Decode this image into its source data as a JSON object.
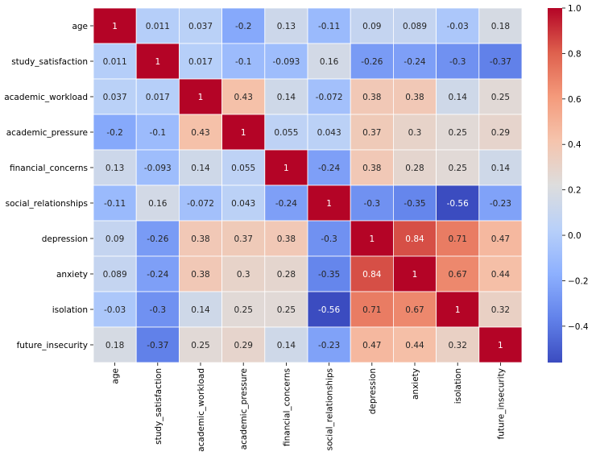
{
  "chart_data": {
    "type": "heatmap",
    "title": "",
    "xlabel": "",
    "ylabel": "",
    "colormap": "coolwarm",
    "row_labels": [
      "age",
      "study_satisfaction",
      "academic_workload ",
      "academic_pressure",
      "financial_concerns",
      "social_relationships",
      "depression",
      "anxiety",
      "isolation",
      "future_insecurity"
    ],
    "column_labels": [
      "age",
      "study_satisfaction",
      "academic_workload",
      "academic_pressure",
      "financial_concerns",
      "social_relationships",
      "depression",
      "anxiety",
      "isolation",
      "future_insecurity"
    ],
    "values": [
      [
        1,
        0.011,
        0.037,
        -0.2,
        0.13,
        -0.11,
        0.09,
        0.089,
        -0.03,
        0.18
      ],
      [
        0.011,
        1,
        0.017,
        -0.1,
        -0.093,
        0.16,
        -0.26,
        -0.24,
        -0.3,
        -0.37
      ],
      [
        0.037,
        0.017,
        1,
        0.43,
        0.14,
        -0.072,
        0.38,
        0.38,
        0.14,
        0.25
      ],
      [
        -0.2,
        -0.1,
        0.43,
        1,
        0.055,
        0.043,
        0.37,
        0.3,
        0.25,
        0.29
      ],
      [
        0.13,
        -0.093,
        0.14,
        0.055,
        1,
        -0.24,
        0.38,
        0.28,
        0.25,
        0.14
      ],
      [
        -0.11,
        0.16,
        -0.072,
        0.043,
        -0.24,
        1,
        -0.3,
        -0.35,
        -0.56,
        -0.23
      ],
      [
        0.09,
        -0.26,
        0.38,
        0.37,
        0.38,
        -0.3,
        1,
        0.84,
        0.71,
        0.47
      ],
      [
        0.089,
        -0.24,
        0.38,
        0.3,
        0.28,
        -0.35,
        0.84,
        1,
        0.67,
        0.44
      ],
      [
        -0.03,
        -0.3,
        0.14,
        0.25,
        0.25,
        -0.56,
        0.71,
        0.67,
        1,
        0.32
      ],
      [
        0.18,
        -0.37,
        0.25,
        0.29,
        0.14,
        -0.23,
        0.47,
        0.44,
        0.32,
        1
      ]
    ],
    "labels": [
      [
        "1",
        "0.011",
        "0.037",
        "-0.2",
        "0.13",
        "-0.11",
        "0.09",
        "0.089",
        "-0.03",
        "0.18"
      ],
      [
        "0.011",
        "1",
        "0.017",
        "-0.1",
        "-0.093",
        "0.16",
        "-0.26",
        "-0.24",
        "-0.3",
        "-0.37"
      ],
      [
        "0.037",
        "0.017",
        "1",
        "0.43",
        "0.14",
        "-0.072",
        "0.38",
        "0.38",
        "0.14",
        "0.25"
      ],
      [
        "-0.2",
        "-0.1",
        "0.43",
        "1",
        "0.055",
        "0.043",
        "0.37",
        "0.3",
        "0.25",
        "0.29"
      ],
      [
        "0.13",
        "-0.093",
        "0.14",
        "0.055",
        "1",
        "-0.24",
        "0.38",
        "0.28",
        "0.25",
        "0.14"
      ],
      [
        "-0.11",
        "0.16",
        "-0.072",
        "0.043",
        "-0.24",
        "1",
        "-0.3",
        "-0.35",
        "-0.56",
        "-0.23"
      ],
      [
        "0.09",
        "-0.26",
        "0.38",
        "0.37",
        "0.38",
        "-0.3",
        "1",
        "0.84",
        "0.71",
        "0.47"
      ],
      [
        "0.089",
        "-0.24",
        "0.38",
        "0.3",
        "0.28",
        "-0.35",
        "0.84",
        "1",
        "0.67",
        "0.44"
      ],
      [
        "-0.03",
        "-0.3",
        "0.14",
        "0.25",
        "0.25",
        "-0.56",
        "0.71",
        "0.67",
        "1",
        "0.32"
      ],
      [
        "0.18",
        "-0.37",
        "0.25",
        "0.29",
        "0.14",
        "-0.23",
        "0.47",
        "0.44",
        "0.32",
        "1"
      ]
    ],
    "colorbar": {
      "vmin": -0.56,
      "vmax": 1.0,
      "ticks": [
        1.0,
        0.8,
        0.6,
        0.4,
        0.2,
        0.0,
        -0.2,
        -0.4
      ],
      "tick_labels": [
        "1.0",
        "0.8",
        "0.6",
        "0.4",
        "0.2",
        "0.0",
        "−0.2",
        "−0.4"
      ]
    }
  }
}
